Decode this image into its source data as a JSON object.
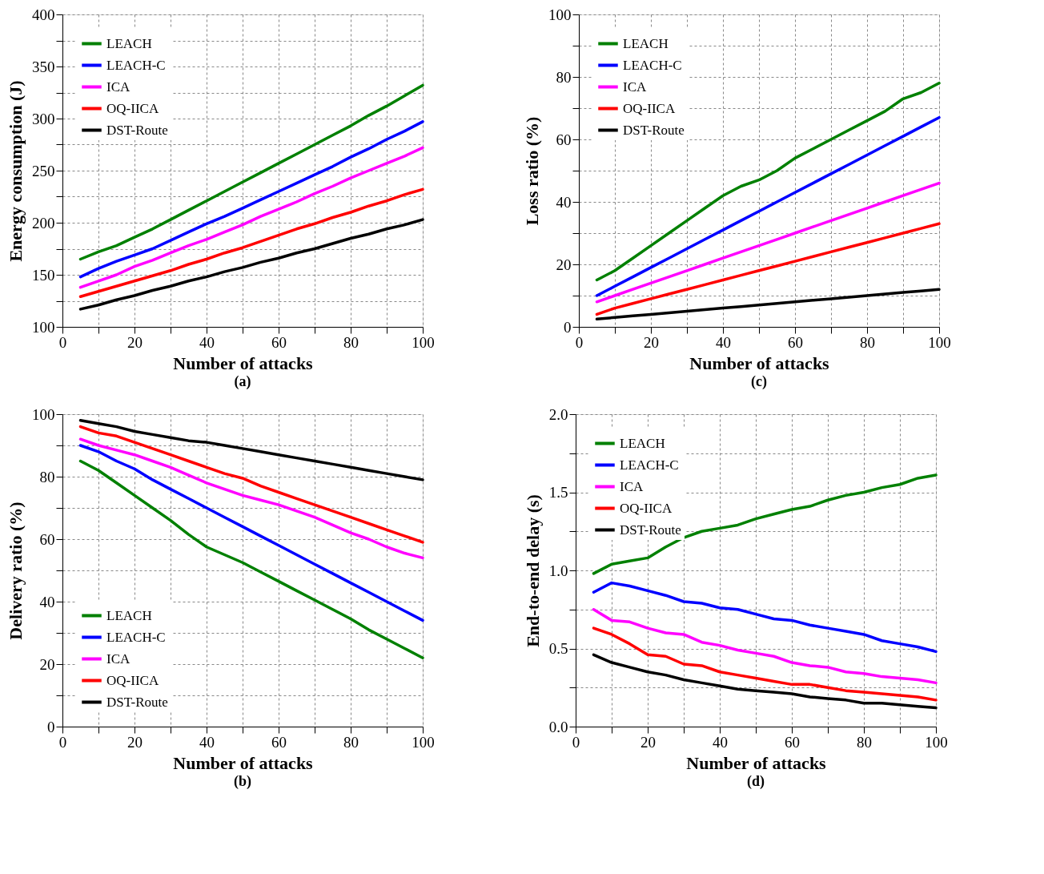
{
  "chart_data": [
    {
      "type": "line",
      "title": "(a)",
      "xlabel": "Number of attacks",
      "ylabel": "Energy consumption (J)",
      "legend": "top left",
      "grid": true,
      "line_style": "solid",
      "marker": "none",
      "x": [
        5,
        10,
        15,
        20,
        25,
        30,
        35,
        40,
        45,
        50,
        55,
        60,
        65,
        70,
        75,
        80,
        85,
        90,
        95,
        100
      ],
      "xlim": [
        0,
        100
      ],
      "xticks": [
        0,
        {
          "value": 10,
          "label": null
        },
        20,
        {
          "value": 30,
          "label": null
        },
        40,
        {
          "value": 50,
          "label": null
        },
        60,
        {
          "value": 70,
          "label": null
        },
        80,
        {
          "value": 90,
          "label": null
        },
        100
      ],
      "ylim": [
        100,
        400
      ],
      "yticks": [
        100,
        {
          "value": 125,
          "label": null
        },
        150,
        {
          "value": 175,
          "label": null
        },
        200,
        {
          "value": 225,
          "label": null
        },
        250,
        {
          "value": 275,
          "label": null
        },
        300,
        {
          "value": 325,
          "label": null
        },
        350,
        {
          "value": 375,
          "label": null
        },
        400
      ],
      "series": [
        {
          "name": "LEACH",
          "color": "#008000",
          "values": [
            165,
            172,
            178,
            186,
            194,
            203,
            212,
            221,
            230,
            239,
            248,
            257,
            266,
            275,
            284,
            293,
            303,
            312,
            322,
            332
          ]
        },
        {
          "name": "LEACH-C",
          "color": "#0000ff",
          "values": [
            148,
            156,
            163,
            169,
            175,
            183,
            191,
            199,
            206,
            214,
            222,
            230,
            238,
            246,
            254,
            263,
            271,
            280,
            288,
            297
          ]
        },
        {
          "name": "ICA",
          "color": "#ff00ff",
          "values": [
            138,
            144,
            150,
            158,
            164,
            171,
            178,
            184,
            191,
            198,
            206,
            213,
            220,
            228,
            235,
            243,
            250,
            257,
            264,
            272
          ]
        },
        {
          "name": "OQ-IICA",
          "color": "#ff0000",
          "values": [
            129,
            134,
            139,
            144,
            149,
            154,
            160,
            165,
            171,
            176,
            182,
            188,
            194,
            199,
            205,
            210,
            216,
            221,
            227,
            232
          ]
        },
        {
          "name": "DST-Route",
          "color": "#000000",
          "values": [
            117,
            121,
            126,
            130,
            135,
            139,
            144,
            148,
            153,
            157,
            162,
            166,
            171,
            175,
            180,
            185,
            189,
            194,
            198,
            203
          ]
        }
      ]
    },
    {
      "type": "line",
      "title": "(c)",
      "xlabel": "Number of attacks",
      "ylabel": "Loss ratio (%)",
      "legend": "top left",
      "grid": true,
      "line_style": "solid",
      "marker": "none",
      "x": [
        5,
        10,
        15,
        20,
        25,
        30,
        35,
        40,
        45,
        50,
        55,
        60,
        65,
        70,
        75,
        80,
        85,
        90,
        95,
        100
      ],
      "xlim": [
        0,
        100
      ],
      "xticks": [
        0,
        {
          "value": 10,
          "label": null
        },
        20,
        {
          "value": 30,
          "label": null
        },
        40,
        {
          "value": 50,
          "label": null
        },
        60,
        {
          "value": 70,
          "label": null
        },
        80,
        {
          "value": 90,
          "label": null
        },
        100
      ],
      "ylim": [
        0,
        100
      ],
      "yticks": [
        0,
        {
          "value": 10,
          "label": null
        },
        20,
        {
          "value": 30,
          "label": null
        },
        40,
        {
          "value": 50,
          "label": null
        },
        60,
        {
          "value": 70,
          "label": null
        },
        80,
        {
          "value": 90,
          "label": null
        },
        100
      ],
      "series": [
        {
          "name": "LEACH",
          "color": "#008000",
          "values": [
            15,
            18,
            22,
            26,
            30,
            34,
            38,
            42,
            45,
            47,
            50,
            54,
            57,
            60,
            63,
            66,
            69,
            73,
            75,
            78
          ]
        },
        {
          "name": "LEACH-C",
          "color": "#0000ff",
          "values": [
            10,
            13,
            16,
            19,
            22,
            25,
            28,
            31,
            34,
            37,
            40,
            43,
            46,
            49,
            52,
            55,
            58,
            61,
            64,
            67
          ]
        },
        {
          "name": "ICA",
          "color": "#ff00ff",
          "values": [
            8,
            10,
            12,
            14,
            16,
            18,
            20,
            22,
            24,
            26,
            28,
            30,
            32,
            34,
            36,
            38,
            40,
            42,
            44,
            46
          ]
        },
        {
          "name": "OQ-IICA",
          "color": "#ff0000",
          "values": [
            4,
            6,
            7.5,
            9,
            10.5,
            12,
            13.5,
            15,
            16.5,
            18,
            19.5,
            21,
            22.5,
            24,
            25.5,
            27,
            28.5,
            30,
            31.5,
            33
          ]
        },
        {
          "name": "DST-Route",
          "color": "#000000",
          "values": [
            2.5,
            3,
            3.5,
            4,
            4.5,
            5,
            5.5,
            6,
            6.5,
            7,
            7.5,
            8,
            8.5,
            9,
            9.5,
            10,
            10.5,
            11,
            11.5,
            12
          ]
        }
      ]
    },
    {
      "type": "line",
      "title": "(b)",
      "xlabel": "Number of attacks",
      "ylabel": "Delivery ratio (%)",
      "legend": "bottom left",
      "grid": true,
      "line_style": "solid",
      "marker": "none",
      "x": [
        5,
        10,
        15,
        20,
        25,
        30,
        35,
        40,
        45,
        50,
        55,
        60,
        65,
        70,
        75,
        80,
        85,
        90,
        95,
        100
      ],
      "xlim": [
        0,
        100
      ],
      "xticks": [
        0,
        {
          "value": 10,
          "label": null
        },
        20,
        {
          "value": 30,
          "label": null
        },
        40,
        {
          "value": 50,
          "label": null
        },
        60,
        {
          "value": 70,
          "label": null
        },
        80,
        {
          "value": 90,
          "label": null
        },
        100
      ],
      "ylim": [
        0,
        100
      ],
      "yticks": [
        0,
        {
          "value": 10,
          "label": null
        },
        20,
        {
          "value": 30,
          "label": null
        },
        40,
        {
          "value": 50,
          "label": null
        },
        60,
        {
          "value": 70,
          "label": null
        },
        80,
        {
          "value": 90,
          "label": null
        },
        100
      ],
      "series": [
        {
          "name": "LEACH",
          "color": "#008000",
          "values": [
            85,
            82,
            78,
            74,
            70,
            66,
            61.5,
            57.5,
            55,
            52.5,
            49.5,
            46.5,
            43.5,
            40.5,
            37.5,
            34.5,
            31,
            28,
            25,
            22
          ]
        },
        {
          "name": "LEACH-C",
          "color": "#0000ff",
          "values": [
            90,
            88,
            85,
            82.5,
            79,
            76,
            73,
            70,
            67,
            64,
            61,
            58,
            55,
            52,
            49,
            46,
            43,
            40,
            37,
            34
          ]
        },
        {
          "name": "ICA",
          "color": "#ff00ff",
          "values": [
            92,
            90,
            88.5,
            87,
            85,
            83,
            80.5,
            78,
            76,
            74,
            72.5,
            71,
            69,
            67,
            64.5,
            62,
            60,
            57.5,
            55.5,
            54
          ]
        },
        {
          "name": "OQ-IICA",
          "color": "#ff0000",
          "values": [
            96,
            94,
            93,
            91,
            89,
            87,
            85,
            83,
            81,
            79.5,
            77,
            75,
            73,
            71,
            69,
            67,
            65,
            63,
            61,
            59
          ]
        },
        {
          "name": "DST-Route",
          "color": "#000000",
          "values": [
            98,
            97,
            96,
            94.5,
            93.5,
            92.5,
            91.5,
            91,
            90,
            89,
            88,
            87,
            86,
            85,
            84,
            83,
            82,
            81,
            80,
            79
          ]
        }
      ]
    },
    {
      "type": "line",
      "title": "(d)",
      "xlabel": "Number of attacks",
      "ylabel": "End-to-end delay (s)",
      "legend": "top left",
      "grid": true,
      "line_style": "solid",
      "marker": "none",
      "x": [
        5,
        10,
        15,
        20,
        25,
        30,
        35,
        40,
        45,
        50,
        55,
        60,
        65,
        70,
        75,
        80,
        85,
        90,
        95,
        100
      ],
      "xlim": [
        0,
        100
      ],
      "xticks": [
        0,
        {
          "value": 10,
          "label": null
        },
        20,
        {
          "value": 30,
          "label": null
        },
        40,
        {
          "value": 50,
          "label": null
        },
        60,
        {
          "value": 70,
          "label": null
        },
        80,
        {
          "value": 90,
          "label": null
        },
        100
      ],
      "ylim": [
        0,
        2
      ],
      "yticks": [
        {
          "value": 0,
          "label": "0.0"
        },
        {
          "value": 0.25,
          "label": null
        },
        0.5,
        {
          "value": 0.75,
          "label": null
        },
        {
          "value": 1,
          "label": "1.0"
        },
        {
          "value": 1.25,
          "label": null
        },
        1.5,
        {
          "value": 1.75,
          "label": null
        },
        {
          "value": 2,
          "label": "2.0"
        }
      ],
      "series": [
        {
          "name": "LEACH",
          "color": "#008000",
          "values": [
            0.98,
            1.04,
            1.06,
            1.08,
            1.15,
            1.21,
            1.25,
            1.27,
            1.29,
            1.33,
            1.36,
            1.39,
            1.41,
            1.45,
            1.48,
            1.5,
            1.53,
            1.55,
            1.59,
            1.61
          ]
        },
        {
          "name": "LEACH-C",
          "color": "#0000ff",
          "values": [
            0.86,
            0.92,
            0.9,
            0.87,
            0.84,
            0.8,
            0.79,
            0.76,
            0.75,
            0.72,
            0.69,
            0.68,
            0.65,
            0.63,
            0.61,
            0.59,
            0.55,
            0.53,
            0.51,
            0.48
          ]
        },
        {
          "name": "ICA",
          "color": "#ff00ff",
          "values": [
            0.75,
            0.68,
            0.67,
            0.63,
            0.6,
            0.59,
            0.54,
            0.52,
            0.49,
            0.47,
            0.45,
            0.41,
            0.39,
            0.38,
            0.35,
            0.34,
            0.32,
            0.31,
            0.3,
            0.28
          ]
        },
        {
          "name": "OQ-IICA",
          "color": "#ff0000",
          "values": [
            0.63,
            0.59,
            0.53,
            0.46,
            0.45,
            0.4,
            0.39,
            0.35,
            0.33,
            0.31,
            0.29,
            0.27,
            0.27,
            0.25,
            0.23,
            0.22,
            0.21,
            0.2,
            0.19,
            0.17
          ]
        },
        {
          "name": "DST-Route",
          "color": "#000000",
          "values": [
            0.46,
            0.41,
            0.38,
            0.35,
            0.33,
            0.3,
            0.28,
            0.26,
            0.24,
            0.23,
            0.22,
            0.21,
            0.19,
            0.18,
            0.17,
            0.15,
            0.15,
            0.14,
            0.13,
            0.12
          ]
        }
      ]
    }
  ]
}
